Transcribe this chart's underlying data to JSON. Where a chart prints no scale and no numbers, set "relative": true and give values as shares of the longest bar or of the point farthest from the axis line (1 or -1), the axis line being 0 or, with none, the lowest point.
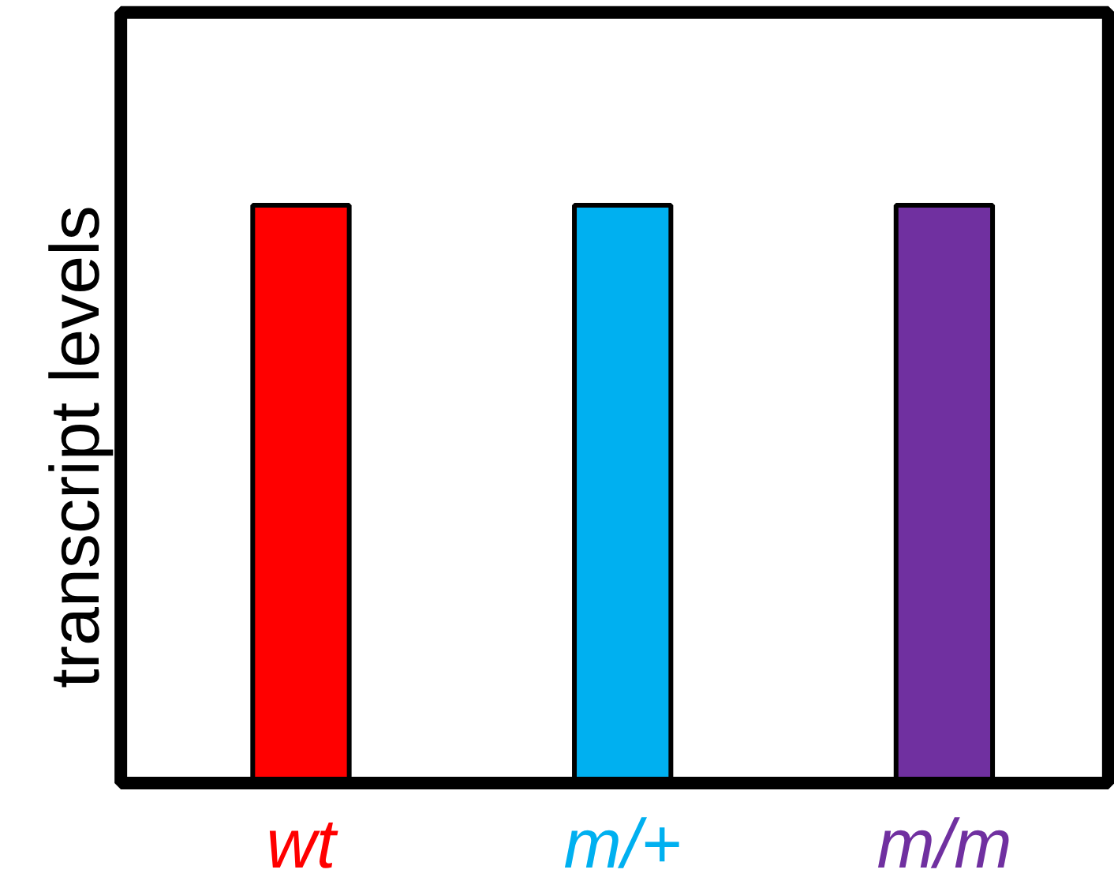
{
  "chart_data": {
    "type": "bar",
    "relative": true,
    "ylabel": "transcript levels",
    "categories": [
      "wt",
      "m/+",
      "m/m"
    ],
    "values": [
      1,
      1,
      1
    ],
    "colors": [
      "#ff0000",
      "#00b0f0",
      "#7030a0"
    ]
  }
}
